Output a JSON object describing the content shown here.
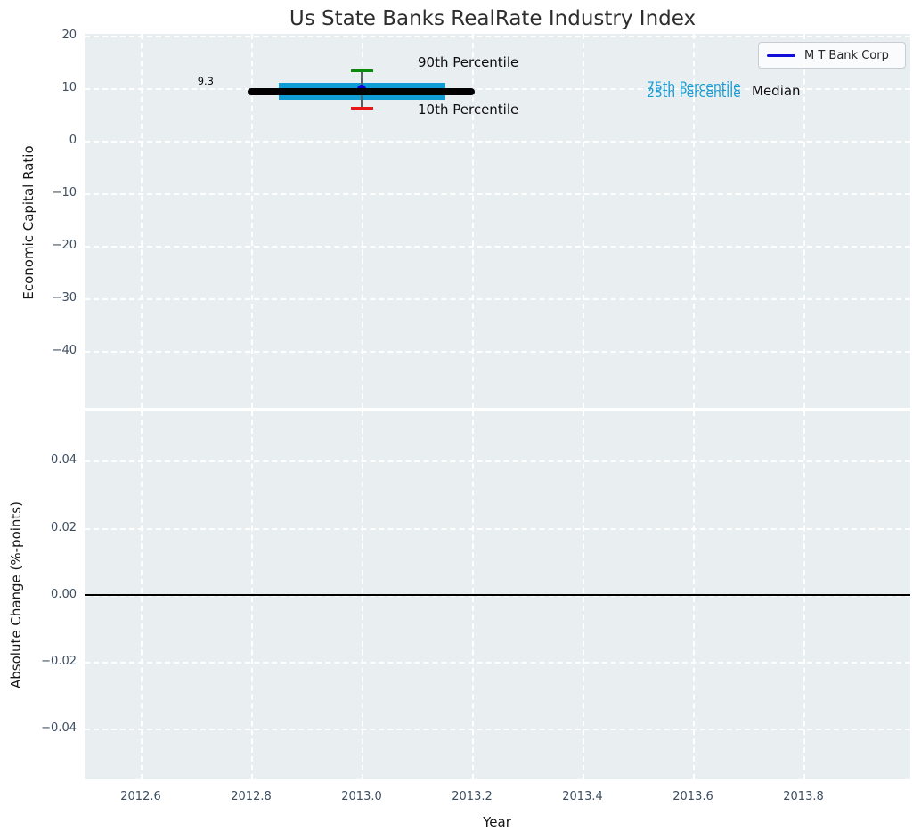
{
  "figure": {
    "title": "Us State Banks RealRate Industry Index"
  },
  "legend": {
    "label": "M T Bank Corp",
    "position": "upper right",
    "line_color": "#0f0fd8"
  },
  "annotations": {
    "point_value": "9.3",
    "p90_label": "90th Percentile",
    "p10_label": "10th Percentile",
    "p75_label": "75th Percentile",
    "p25_label": "25th Percentile",
    "median_label": "Median"
  },
  "colors": {
    "plot_background": "#e9eef0",
    "grid": "#ffffff",
    "tick_text": "#3d4e60",
    "percentile_band": "#109dd6",
    "p90_cap": "#0c8a0c",
    "p10_cap": "#ea1515",
    "median_line": "#000000",
    "series_point": "#0000d8",
    "percentile_text": "#1a9bd3",
    "zero_line": "#000000"
  },
  "chart_data": [
    {
      "type": "line",
      "panel": "top",
      "title": "Us State Banks RealRate Industry Index",
      "ylabel": "Economic Capital Ratio",
      "xlabel": "",
      "series": [
        {
          "name": "M T Bank Corp",
          "x": [
            2013.0
          ],
          "y": [
            9.3
          ],
          "color": "#0000d8"
        }
      ],
      "industry_percentiles": {
        "x": 2013.0,
        "p90": 13.2,
        "p75": 11.0,
        "median": 9.3,
        "p25": 7.7,
        "p10": 6.2,
        "median_line_xspan": [
          2012.79,
          2013.21
        ],
        "band_xspan": [
          2012.86,
          2013.16
        ]
      },
      "point_label": "9.3",
      "yticks": [
        "20",
        "10",
        "0",
        "−10",
        "−20",
        "−30",
        "−40"
      ],
      "ylim": [
        -50.6,
        20.9
      ],
      "xlim": [
        2012.5,
        2013.99
      ],
      "grid": true,
      "legend_entries": [
        "M T Bank Corp"
      ],
      "legend_position": "upper right"
    },
    {
      "type": "line",
      "panel": "bottom",
      "title": "",
      "ylabel": "Absolute Change (%-points)",
      "xlabel": "Year",
      "series": [],
      "zero_line_y": 0.0,
      "yticks": [
        "0.04",
        "0.02",
        "0.00",
        "−0.02",
        "−0.04"
      ],
      "xticks": [
        "2012.6",
        "2012.8",
        "2013.0",
        "2013.2",
        "2013.4",
        "2013.6",
        "2013.8"
      ],
      "ylim": [
        -0.056,
        0.056
      ],
      "xlim": [
        2012.5,
        2013.99
      ],
      "grid": true
    }
  ]
}
